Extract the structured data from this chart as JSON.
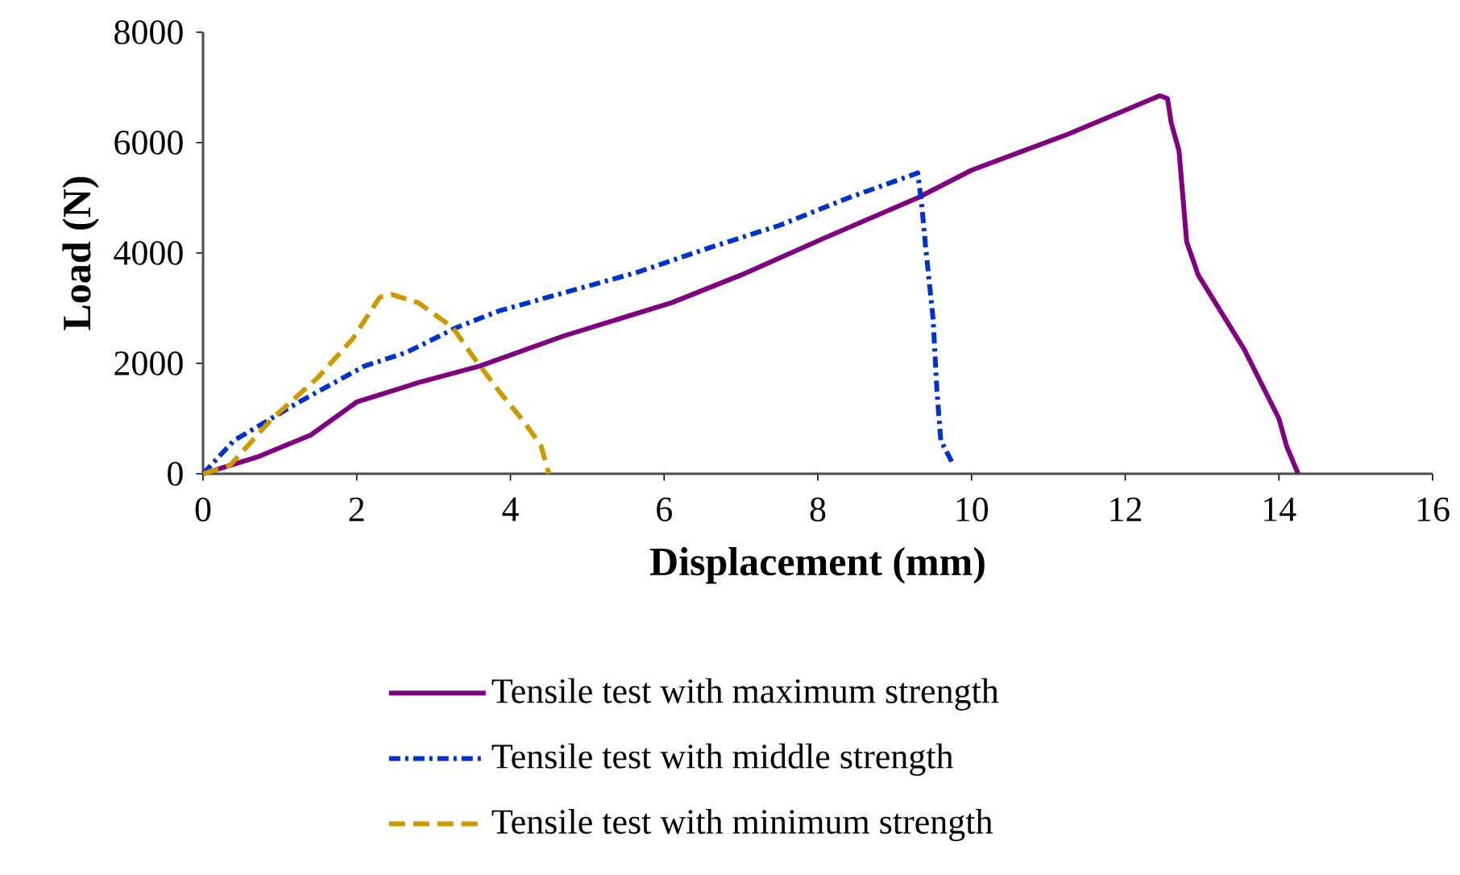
{
  "chart_data": {
    "type": "line",
    "xlabel": "Displacement (mm)",
    "ylabel": "Load (N)",
    "xlim": [
      0,
      16
    ],
    "ylim": [
      0,
      8000
    ],
    "xticks": [
      0,
      2,
      4,
      6,
      8,
      10,
      12,
      14,
      16
    ],
    "yticks": [
      0,
      2000,
      4000,
      6000,
      8000
    ],
    "grid": false,
    "legend": "bottom",
    "marker": "none",
    "series": [
      {
        "name": "Tensile test with maximum strength",
        "color": "#800080",
        "line_style": "solid",
        "x": [
          0,
          0.7,
          1.4,
          2.0,
          2.8,
          3.6,
          4.7,
          6.1,
          7.0,
          8.05,
          9.3,
          10.0,
          11.25,
          12.45,
          12.55,
          12.6,
          12.7,
          12.8,
          12.95,
          13.55,
          14.0,
          14.1,
          14.25
        ],
        "values": [
          0,
          300,
          700,
          1300,
          1650,
          1950,
          2500,
          3100,
          3600,
          4250,
          5000,
          5500,
          6150,
          6850,
          6800,
          6350,
          5850,
          4200,
          3600,
          2250,
          1000,
          500,
          0
        ]
      },
      {
        "name": "Tensile test with middle strength",
        "color": "#0033cc",
        "line_style": "dashdot",
        "x": [
          0,
          0.4,
          1.25,
          2.1,
          2.65,
          3.3,
          3.85,
          4.75,
          5.65,
          6.6,
          7.5,
          8.4,
          9.3,
          9.35,
          9.4,
          9.5,
          9.55,
          9.6,
          9.75
        ],
        "values": [
          0,
          600,
          1300,
          1950,
          2200,
          2650,
          2950,
          3300,
          3650,
          4100,
          4500,
          5000,
          5450,
          4900,
          4150,
          2800,
          1500,
          600,
          200
        ]
      },
      {
        "name": "Tensile test with minimum strength",
        "color": "#cc9900",
        "line_style": "dashed",
        "x": [
          0,
          0.35,
          0.9,
          1.5,
          1.95,
          2.3,
          2.45,
          2.8,
          3.25,
          3.5,
          3.85,
          4.2,
          4.4,
          4.5
        ],
        "values": [
          0,
          150,
          1000,
          1750,
          2450,
          3200,
          3250,
          3100,
          2650,
          2150,
          1500,
          900,
          500,
          0
        ]
      }
    ]
  }
}
